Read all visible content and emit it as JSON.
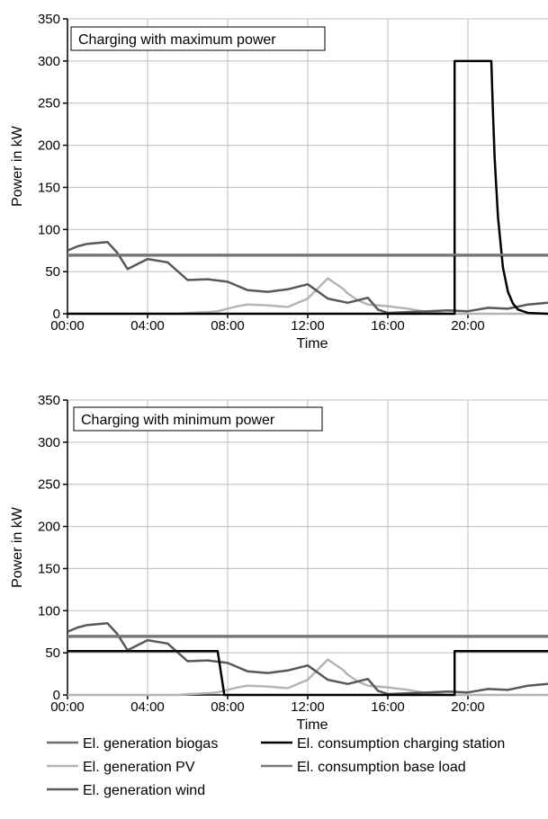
{
  "chart_data": [
    {
      "type": "line",
      "title": "Charging with maximum power",
      "xlabel": "Time",
      "ylabel": "Power in kW",
      "xlim": [
        "00:00",
        "24:00"
      ],
      "ylim": [
        0,
        350
      ],
      "xticks": [
        "00:00",
        "04:00",
        "08:00",
        "12:00",
        "16:00",
        "20:00"
      ],
      "yticks": [
        0,
        50,
        100,
        150,
        200,
        250,
        300,
        350
      ],
      "grid": true,
      "series": [
        {
          "name": "El. generation biogas",
          "color": "#6e6e6e",
          "x": [
            "00:00",
            "24:00"
          ],
          "values": [
            69,
            69
          ]
        },
        {
          "name": "El. generation PV",
          "color": "#b4b4b4",
          "x": [
            "00:00",
            "05:30",
            "06:00",
            "07:00",
            "07:30",
            "08:00",
            "08:30",
            "09:00",
            "10:00",
            "11:00",
            "12:00",
            "12:30",
            "13:00",
            "13:15",
            "13:45",
            "14:00",
            "14:30",
            "15:00",
            "16:00",
            "17:00",
            "17:30",
            "18:00",
            "18:30",
            "19:00",
            "24:00"
          ],
          "values": [
            0,
            0,
            1,
            2,
            3,
            6,
            9,
            11,
            10,
            8,
            18,
            30,
            42,
            38,
            30,
            24,
            16,
            11,
            9,
            6,
            4,
            2,
            1,
            0,
            0
          ]
        },
        {
          "name": "El. generation wind",
          "color": "#585858",
          "x": [
            "00:00",
            "00:30",
            "01:00",
            "02:00",
            "02:30",
            "03:00",
            "04:00",
            "05:00",
            "06:00",
            "07:00",
            "08:00",
            "09:00",
            "10:00",
            "11:00",
            "12:00",
            "13:00",
            "14:00",
            "15:00",
            "15:30",
            "16:00",
            "17:00",
            "18:00",
            "19:00",
            "20:00",
            "21:00",
            "22:00",
            "23:00",
            "24:00"
          ],
          "values": [
            75,
            80,
            83,
            85,
            72,
            53,
            65,
            61,
            40,
            41,
            38,
            28,
            26,
            29,
            35,
            18,
            13,
            19,
            5,
            1,
            2,
            3,
            4,
            3,
            7,
            6,
            11,
            13
          ]
        },
        {
          "name": "El. consumption charging station",
          "color": "#000000",
          "x": [
            "00:00",
            "19:20",
            "19:20",
            "21:10",
            "21:15",
            "21:20",
            "21:30",
            "21:45",
            "22:00",
            "22:15",
            "22:30",
            "23:00",
            "24:00"
          ],
          "values": [
            0,
            0,
            300,
            300,
            240,
            185,
            115,
            55,
            26,
            12,
            5,
            1,
            0
          ]
        },
        {
          "name": "El. consumption base load",
          "color": "#7a7a7a",
          "x": [
            "00:00",
            "24:00"
          ],
          "values": [
            70,
            70
          ]
        }
      ]
    },
    {
      "type": "line",
      "title": "Charging with minimum power",
      "xlabel": "Time",
      "ylabel": "Power in kW",
      "xlim": [
        "00:00",
        "24:00"
      ],
      "ylim": [
        0,
        350
      ],
      "xticks": [
        "00:00",
        "04:00",
        "08:00",
        "12:00",
        "16:00",
        "20:00"
      ],
      "yticks": [
        0,
        50,
        100,
        150,
        200,
        250,
        300,
        350
      ],
      "grid": true,
      "series": [
        {
          "name": "El. generation biogas",
          "color": "#6e6e6e",
          "x": [
            "00:00",
            "24:00"
          ],
          "values": [
            69,
            69
          ]
        },
        {
          "name": "El. generation PV",
          "color": "#b4b4b4",
          "x": [
            "00:00",
            "05:30",
            "06:00",
            "07:00",
            "07:30",
            "08:00",
            "08:30",
            "09:00",
            "10:00",
            "11:00",
            "12:00",
            "12:30",
            "13:00",
            "13:15",
            "13:45",
            "14:00",
            "14:30",
            "15:00",
            "16:00",
            "17:00",
            "17:30",
            "18:00",
            "18:30",
            "19:00",
            "24:00"
          ],
          "values": [
            0,
            0,
            1,
            2,
            3,
            6,
            9,
            11,
            10,
            8,
            18,
            30,
            42,
            38,
            30,
            24,
            16,
            11,
            9,
            6,
            4,
            2,
            1,
            0,
            0
          ]
        },
        {
          "name": "El. generation wind",
          "color": "#585858",
          "x": [
            "00:00",
            "00:30",
            "01:00",
            "02:00",
            "02:30",
            "03:00",
            "04:00",
            "05:00",
            "06:00",
            "07:00",
            "08:00",
            "09:00",
            "10:00",
            "11:00",
            "12:00",
            "13:00",
            "14:00",
            "15:00",
            "15:30",
            "16:00",
            "17:00",
            "18:00",
            "19:00",
            "20:00",
            "21:00",
            "22:00",
            "23:00",
            "24:00"
          ],
          "values": [
            75,
            80,
            83,
            85,
            72,
            53,
            65,
            61,
            40,
            41,
            38,
            28,
            26,
            29,
            35,
            18,
            13,
            19,
            5,
            1,
            2,
            3,
            4,
            3,
            7,
            6,
            11,
            13
          ]
        },
        {
          "name": "El. consumption charging station",
          "color": "#000000",
          "x": [
            "00:00",
            "07:30",
            "07:50",
            "19:20",
            "19:20",
            "24:00"
          ],
          "values": [
            52,
            52,
            0,
            0,
            52,
            52
          ]
        },
        {
          "name": "El. consumption base load",
          "color": "#7a7a7a",
          "x": [
            "00:00",
            "24:00"
          ],
          "values": [
            70,
            70
          ]
        }
      ]
    }
  ],
  "legend": {
    "items": [
      {
        "label": "El. generation biogas",
        "color": "#6e6e6e"
      },
      {
        "label": "El. consumption charging station",
        "color": "#000000"
      },
      {
        "label": "El. generation PV",
        "color": "#b4b4b4"
      },
      {
        "label": "El. consumption base load",
        "color": "#7a7a7a"
      },
      {
        "label": "El. generation wind",
        "color": "#585858"
      }
    ]
  }
}
